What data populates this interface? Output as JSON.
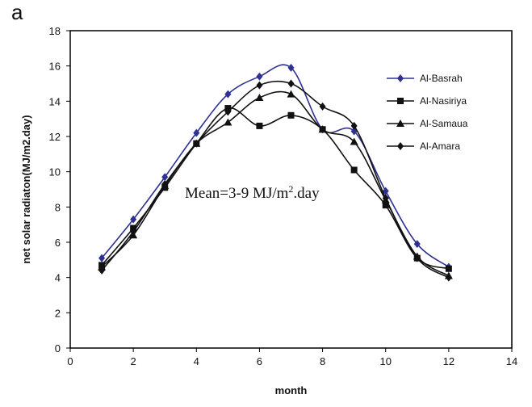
{
  "panel_label": "a",
  "chart_data": {
    "type": "line",
    "title": "",
    "xlabel": "month",
    "ylabel": "net solar radiaton(MJ/m2.day)",
    "xlim": [
      0,
      14
    ],
    "ylim": [
      0,
      18
    ],
    "xticks": [
      0,
      2,
      4,
      6,
      8,
      10,
      12,
      14
    ],
    "yticks": [
      0,
      2,
      4,
      6,
      8,
      10,
      12,
      14,
      16,
      18
    ],
    "grid": false,
    "legend_position": "top-right",
    "annotation": {
      "main": "Mean=3-9 MJ/m",
      "sup": "2",
      "tail": ".day"
    },
    "x": [
      1,
      2,
      3,
      4,
      5,
      6,
      7,
      8,
      9,
      10,
      11,
      12
    ],
    "series": [
      {
        "name": "Al-Basrah",
        "color": "#2e3192",
        "marker": "diamond",
        "values": [
          5.1,
          7.3,
          9.7,
          12.2,
          14.4,
          15.4,
          15.9,
          12.4,
          12.3,
          8.9,
          5.9,
          4.6
        ]
      },
      {
        "name": "Al-Nasiriya",
        "color": "#111111",
        "marker": "square",
        "values": [
          4.7,
          6.8,
          9.1,
          11.6,
          13.6,
          12.6,
          13.2,
          12.4,
          10.1,
          8.1,
          5.1,
          4.5
        ]
      },
      {
        "name": "Al-Samaua",
        "color": "#111111",
        "marker": "triangle",
        "values": [
          4.6,
          6.4,
          9.2,
          11.6,
          12.8,
          14.2,
          14.4,
          12.4,
          11.7,
          8.4,
          5.2,
          4.1
        ]
      },
      {
        "name": "Al-Amara",
        "color": "#111111",
        "marker": "diamond",
        "values": [
          4.4,
          6.6,
          9.3,
          11.6,
          13.4,
          14.9,
          15.0,
          13.7,
          12.6,
          8.5,
          5.1,
          4.0
        ]
      }
    ]
  }
}
